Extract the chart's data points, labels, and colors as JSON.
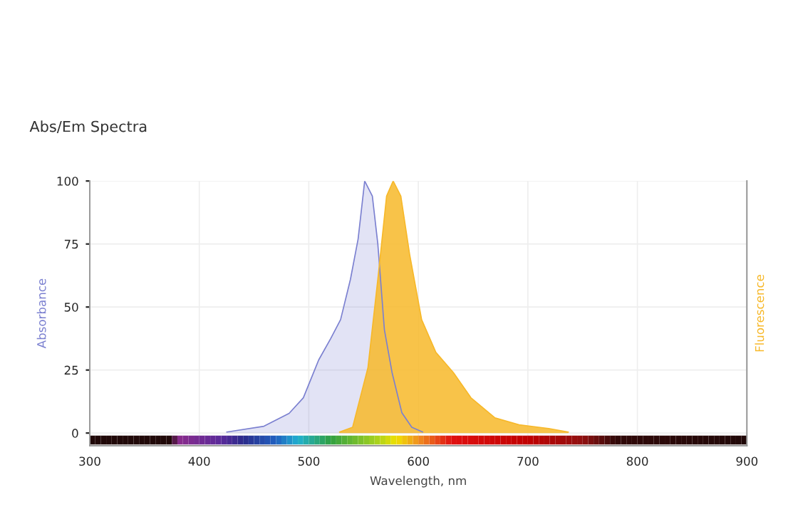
{
  "chart_data": {
    "type": "area",
    "title": "Abs/Em Spectra",
    "xlabel": "Wavelength, nm",
    "ylabel": "Absorbance",
    "y2label": "Fluorescence",
    "series": [
      {
        "color": "#7b80d0",
        "x": [
          425,
          459,
          482,
          495,
          509,
          520,
          529,
          538,
          545,
          551,
          558,
          563,
          569,
          576,
          585,
          594,
          604
        ],
        "values": [
          0.4,
          2.7,
          7.8,
          14,
          29,
          37.5,
          45,
          61,
          77,
          100,
          94,
          75,
          41,
          24,
          8,
          2.3,
          0.4
        ]
      },
      {
        "color": "#f7b829",
        "x": [
          528,
          540,
          554,
          563,
          571,
          577,
          584,
          592,
          603,
          616,
          632,
          648,
          670,
          692,
          719,
          737
        ],
        "values": [
          0.4,
          2.3,
          26,
          61,
          94,
          100,
          94,
          71,
          45,
          32,
          24,
          14,
          6,
          3.3,
          1.8,
          0.4
        ]
      }
    ],
    "xlim": [
      300,
      900
    ],
    "xticks": [
      300,
      400,
      500,
      600,
      700,
      800,
      900
    ],
    "ylim": [
      -5,
      100
    ],
    "yticks": [
      0,
      25,
      50,
      75,
      100
    ],
    "grid": true,
    "legend": false
  }
}
